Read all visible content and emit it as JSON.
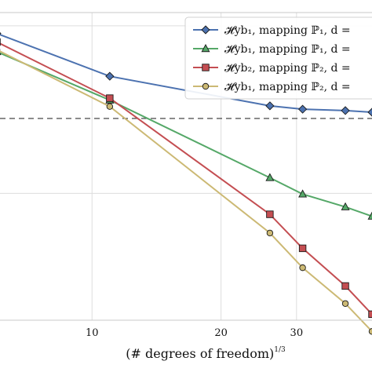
{
  "chart_data": {
    "type": "line",
    "xscale": "log",
    "yscale": "log",
    "xlabel": "(# degrees of freedom)",
    "xlabel_exponent": "1/3",
    "xticks": [
      10,
      20,
      30
    ],
    "xlim": [
      6.1,
      45
    ],
    "ylim": [
      0.0175,
      1.2
    ],
    "grid": true,
    "legend_position": "upper-right",
    "reference_line": {
      "y": 0.28,
      "style": "dashed",
      "color": "#333333"
    },
    "series": [
      {
        "name": "𝓗yb₁, mapping ℙ₁, d =",
        "color": "#4C72B0",
        "marker": "diamond",
        "x": [
          6.0,
          11.0,
          26.0,
          31.0,
          39.0,
          45.0
        ],
        "y": [
          0.9,
          0.5,
          0.333,
          0.318,
          0.312,
          0.305
        ]
      },
      {
        "name": "𝓗yb₁, mapping ℙ₁, d =",
        "color": "#55A868",
        "marker": "triangle",
        "x": [
          6.0,
          11.0,
          26.0,
          31.0,
          39.0,
          45.0
        ],
        "y": [
          0.7,
          0.36,
          0.124,
          0.099,
          0.083,
          0.073
        ]
      },
      {
        "name": "𝓗yb₂, mapping ℙ₂, d =",
        "color": "#C44E52",
        "marker": "square",
        "x": [
          6.0,
          11.0,
          26.0,
          31.0,
          39.0,
          45.0
        ],
        "y": [
          0.8,
          0.37,
          0.075,
          0.047,
          0.028,
          0.019
        ]
      },
      {
        "name": "𝓗yb₁, mapping ℙ₂, d =",
        "color": "#CCB974",
        "marker": "circle",
        "x": [
          6.0,
          11.0,
          26.0,
          31.0,
          39.0,
          45.0
        ],
        "y": [
          0.72,
          0.33,
          0.058,
          0.036,
          0.022,
          0.015
        ]
      }
    ]
  }
}
